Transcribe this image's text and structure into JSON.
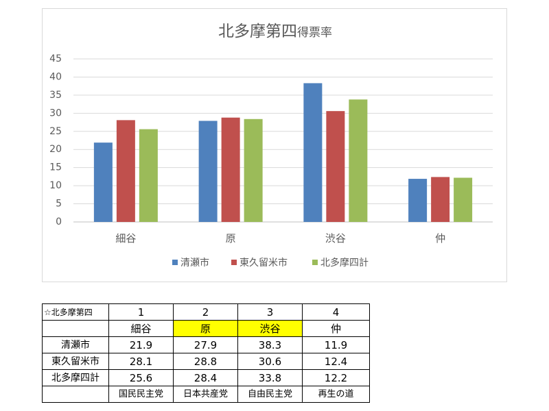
{
  "chart_data": {
    "type": "bar",
    "title": "北多摩第四",
    "title_suffix": "得票率",
    "categories": [
      "細谷",
      "原",
      "渋谷",
      "仲"
    ],
    "series": [
      {
        "name": "清瀬市",
        "color": "#4f81bd",
        "values": [
          21.9,
          27.9,
          38.3,
          11.9
        ]
      },
      {
        "name": "東久留米市",
        "color": "#c0504d",
        "values": [
          28.1,
          28.8,
          30.6,
          12.4
        ]
      },
      {
        "name": "北多摩四計",
        "color": "#9bbb59",
        "values": [
          25.6,
          28.4,
          33.8,
          12.2
        ]
      }
    ],
    "ylim": [
      0,
      45
    ],
    "yticks": [
      0,
      5,
      10,
      15,
      20,
      25,
      30,
      35,
      40,
      45
    ],
    "grid": true,
    "legend": "bottom"
  },
  "table": {
    "corner": "☆北多摩第四",
    "numbers": [
      "1",
      "2",
      "3",
      "4"
    ],
    "names": [
      "細谷",
      "原",
      "渋谷",
      "仲"
    ],
    "rows": [
      {
        "label": "清瀬市",
        "values": [
          "21.9",
          "27.9",
          "38.3",
          "11.9"
        ]
      },
      {
        "label": "東久留米市",
        "values": [
          "28.1",
          "28.8",
          "30.6",
          "12.4"
        ]
      },
      {
        "label": "北多摩四計",
        "values": [
          "25.6",
          "28.4",
          "33.8",
          "12.2"
        ]
      }
    ],
    "parties": [
      "国民民主党",
      "日本共産党",
      "自由民主党",
      "再生の道"
    ],
    "highlight_color": "#ffff00"
  }
}
